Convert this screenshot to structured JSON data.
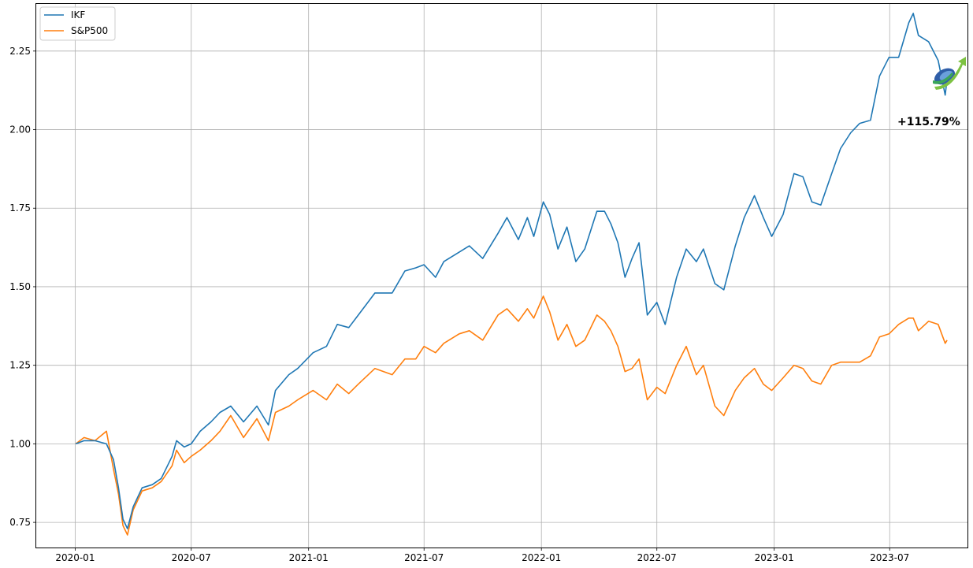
{
  "chart_data": {
    "type": "line",
    "title": "",
    "xlabel": "",
    "ylabel": "",
    "grid": true,
    "legend_position": "top-left",
    "xlim": [
      "2019-11-01",
      "2023-10-31"
    ],
    "ylim": [
      0.67,
      2.4
    ],
    "x_ticks": [
      "2020-01",
      "2020-07",
      "2021-01",
      "2021-07",
      "2022-01",
      "2022-07",
      "2023-01",
      "2023-07"
    ],
    "y_ticks": [
      "0.75",
      "1.00",
      "1.25",
      "1.50",
      "1.75",
      "2.00",
      "2.25"
    ],
    "annotation": "+115.79%",
    "logo": "growth-arrow-logo",
    "colors": {
      "IKF": "#1f77b4",
      "S&P500": "#ff7f0e",
      "grid": "#b0b0b0"
    },
    "series": [
      {
        "name": "IKF",
        "points": [
          [
            "2020-01-02",
            1.0
          ],
          [
            "2020-01-15",
            1.01
          ],
          [
            "2020-02-01",
            1.01
          ],
          [
            "2020-02-19",
            1.0
          ],
          [
            "2020-03-01",
            0.95
          ],
          [
            "2020-03-09",
            0.86
          ],
          [
            "2020-03-16",
            0.76
          ],
          [
            "2020-03-23",
            0.73
          ],
          [
            "2020-04-01",
            0.8
          ],
          [
            "2020-04-15",
            0.86
          ],
          [
            "2020-05-01",
            0.87
          ],
          [
            "2020-05-15",
            0.89
          ],
          [
            "2020-06-01",
            0.96
          ],
          [
            "2020-06-08",
            1.01
          ],
          [
            "2020-06-20",
            0.99
          ],
          [
            "2020-07-01",
            1.0
          ],
          [
            "2020-07-15",
            1.04
          ],
          [
            "2020-08-01",
            1.07
          ],
          [
            "2020-08-15",
            1.1
          ],
          [
            "2020-09-01",
            1.12
          ],
          [
            "2020-09-21",
            1.07
          ],
          [
            "2020-10-12",
            1.12
          ],
          [
            "2020-10-30",
            1.06
          ],
          [
            "2020-11-10",
            1.17
          ],
          [
            "2020-12-01",
            1.22
          ],
          [
            "2020-12-15",
            1.24
          ],
          [
            "2021-01-08",
            1.29
          ],
          [
            "2021-01-29",
            1.31
          ],
          [
            "2021-02-15",
            1.38
          ],
          [
            "2021-03-05",
            1.37
          ],
          [
            "2021-03-20",
            1.41
          ],
          [
            "2021-04-15",
            1.48
          ],
          [
            "2021-05-12",
            1.48
          ],
          [
            "2021-06-01",
            1.55
          ],
          [
            "2021-06-18",
            1.56
          ],
          [
            "2021-07-01",
            1.57
          ],
          [
            "2021-07-19",
            1.53
          ],
          [
            "2021-08-01",
            1.58
          ],
          [
            "2021-08-25",
            1.61
          ],
          [
            "2021-09-10",
            1.63
          ],
          [
            "2021-10-01",
            1.59
          ],
          [
            "2021-10-25",
            1.67
          ],
          [
            "2021-11-08",
            1.72
          ],
          [
            "2021-11-26",
            1.65
          ],
          [
            "2021-12-10",
            1.72
          ],
          [
            "2021-12-20",
            1.66
          ],
          [
            "2022-01-04",
            1.77
          ],
          [
            "2022-01-14",
            1.73
          ],
          [
            "2022-01-27",
            1.62
          ],
          [
            "2022-02-10",
            1.69
          ],
          [
            "2022-02-24",
            1.58
          ],
          [
            "2022-03-10",
            1.62
          ],
          [
            "2022-03-29",
            1.74
          ],
          [
            "2022-04-10",
            1.74
          ],
          [
            "2022-04-20",
            1.7
          ],
          [
            "2022-05-01",
            1.64
          ],
          [
            "2022-05-12",
            1.53
          ],
          [
            "2022-05-23",
            1.59
          ],
          [
            "2022-06-03",
            1.64
          ],
          [
            "2022-06-16",
            1.41
          ],
          [
            "2022-07-01",
            1.45
          ],
          [
            "2022-07-14",
            1.38
          ],
          [
            "2022-08-01",
            1.53
          ],
          [
            "2022-08-16",
            1.62
          ],
          [
            "2022-09-01",
            1.58
          ],
          [
            "2022-09-12",
            1.62
          ],
          [
            "2022-09-30",
            1.51
          ],
          [
            "2022-10-14",
            1.49
          ],
          [
            "2022-11-01",
            1.63
          ],
          [
            "2022-11-15",
            1.72
          ],
          [
            "2022-12-01",
            1.79
          ],
          [
            "2022-12-15",
            1.72
          ],
          [
            "2022-12-28",
            1.66
          ],
          [
            "2023-01-15",
            1.73
          ],
          [
            "2023-02-01",
            1.86
          ],
          [
            "2023-02-15",
            1.85
          ],
          [
            "2023-03-01",
            1.77
          ],
          [
            "2023-03-15",
            1.76
          ],
          [
            "2023-04-01",
            1.86
          ],
          [
            "2023-04-15",
            1.94
          ],
          [
            "2023-05-01",
            1.99
          ],
          [
            "2023-05-15",
            2.02
          ],
          [
            "2023-06-01",
            2.03
          ],
          [
            "2023-06-15",
            2.17
          ],
          [
            "2023-06-30",
            2.23
          ],
          [
            "2023-07-15",
            2.23
          ],
          [
            "2023-07-31",
            2.34
          ],
          [
            "2023-08-07",
            2.37
          ],
          [
            "2023-08-15",
            2.3
          ],
          [
            "2023-08-31",
            2.28
          ],
          [
            "2023-09-15",
            2.22
          ],
          [
            "2023-09-26",
            2.11
          ],
          [
            "2023-09-29",
            2.16
          ]
        ]
      },
      {
        "name": "S&P500",
        "points": [
          [
            "2020-01-02",
            1.0
          ],
          [
            "2020-01-15",
            1.02
          ],
          [
            "2020-02-01",
            1.01
          ],
          [
            "2020-02-19",
            1.04
          ],
          [
            "2020-03-01",
            0.92
          ],
          [
            "2020-03-09",
            0.84
          ],
          [
            "2020-03-16",
            0.74
          ],
          [
            "2020-03-23",
            0.71
          ],
          [
            "2020-04-01",
            0.79
          ],
          [
            "2020-04-15",
            0.85
          ],
          [
            "2020-05-01",
            0.86
          ],
          [
            "2020-05-15",
            0.88
          ],
          [
            "2020-06-01",
            0.93
          ],
          [
            "2020-06-08",
            0.98
          ],
          [
            "2020-06-20",
            0.94
          ],
          [
            "2020-07-01",
            0.96
          ],
          [
            "2020-07-15",
            0.98
          ],
          [
            "2020-08-01",
            1.01
          ],
          [
            "2020-08-15",
            1.04
          ],
          [
            "2020-09-01",
            1.09
          ],
          [
            "2020-09-21",
            1.02
          ],
          [
            "2020-10-12",
            1.08
          ],
          [
            "2020-10-30",
            1.01
          ],
          [
            "2020-11-10",
            1.1
          ],
          [
            "2020-12-01",
            1.12
          ],
          [
            "2020-12-15",
            1.14
          ],
          [
            "2021-01-08",
            1.17
          ],
          [
            "2021-01-29",
            1.14
          ],
          [
            "2021-02-15",
            1.19
          ],
          [
            "2021-03-05",
            1.16
          ],
          [
            "2021-03-20",
            1.19
          ],
          [
            "2021-04-15",
            1.24
          ],
          [
            "2021-05-12",
            1.22
          ],
          [
            "2021-06-01",
            1.27
          ],
          [
            "2021-06-18",
            1.27
          ],
          [
            "2021-07-01",
            1.31
          ],
          [
            "2021-07-19",
            1.29
          ],
          [
            "2021-08-01",
            1.32
          ],
          [
            "2021-08-25",
            1.35
          ],
          [
            "2021-09-10",
            1.36
          ],
          [
            "2021-10-01",
            1.33
          ],
          [
            "2021-10-25",
            1.41
          ],
          [
            "2021-11-08",
            1.43
          ],
          [
            "2021-11-26",
            1.39
          ],
          [
            "2021-12-10",
            1.43
          ],
          [
            "2021-12-20",
            1.4
          ],
          [
            "2022-01-04",
            1.47
          ],
          [
            "2022-01-14",
            1.42
          ],
          [
            "2022-01-27",
            1.33
          ],
          [
            "2022-02-10",
            1.38
          ],
          [
            "2022-02-24",
            1.31
          ],
          [
            "2022-03-10",
            1.33
          ],
          [
            "2022-03-29",
            1.41
          ],
          [
            "2022-04-10",
            1.39
          ],
          [
            "2022-04-20",
            1.36
          ],
          [
            "2022-05-01",
            1.31
          ],
          [
            "2022-05-12",
            1.23
          ],
          [
            "2022-05-23",
            1.24
          ],
          [
            "2022-06-03",
            1.27
          ],
          [
            "2022-06-16",
            1.14
          ],
          [
            "2022-07-01",
            1.18
          ],
          [
            "2022-07-14",
            1.16
          ],
          [
            "2022-08-01",
            1.25
          ],
          [
            "2022-08-16",
            1.31
          ],
          [
            "2022-09-01",
            1.22
          ],
          [
            "2022-09-12",
            1.25
          ],
          [
            "2022-09-30",
            1.12
          ],
          [
            "2022-10-14",
            1.09
          ],
          [
            "2022-11-01",
            1.17
          ],
          [
            "2022-11-15",
            1.21
          ],
          [
            "2022-12-01",
            1.24
          ],
          [
            "2022-12-15",
            1.19
          ],
          [
            "2022-12-28",
            1.17
          ],
          [
            "2023-01-15",
            1.21
          ],
          [
            "2023-02-01",
            1.25
          ],
          [
            "2023-02-15",
            1.24
          ],
          [
            "2023-03-01",
            1.2
          ],
          [
            "2023-03-15",
            1.19
          ],
          [
            "2023-04-01",
            1.25
          ],
          [
            "2023-04-15",
            1.26
          ],
          [
            "2023-05-01",
            1.26
          ],
          [
            "2023-05-15",
            1.26
          ],
          [
            "2023-06-01",
            1.28
          ],
          [
            "2023-06-15",
            1.34
          ],
          [
            "2023-06-30",
            1.35
          ],
          [
            "2023-07-15",
            1.38
          ],
          [
            "2023-07-31",
            1.4
          ],
          [
            "2023-08-07",
            1.4
          ],
          [
            "2023-08-15",
            1.36
          ],
          [
            "2023-08-31",
            1.39
          ],
          [
            "2023-09-15",
            1.38
          ],
          [
            "2023-09-26",
            1.32
          ],
          [
            "2023-09-29",
            1.33
          ]
        ]
      }
    ]
  }
}
